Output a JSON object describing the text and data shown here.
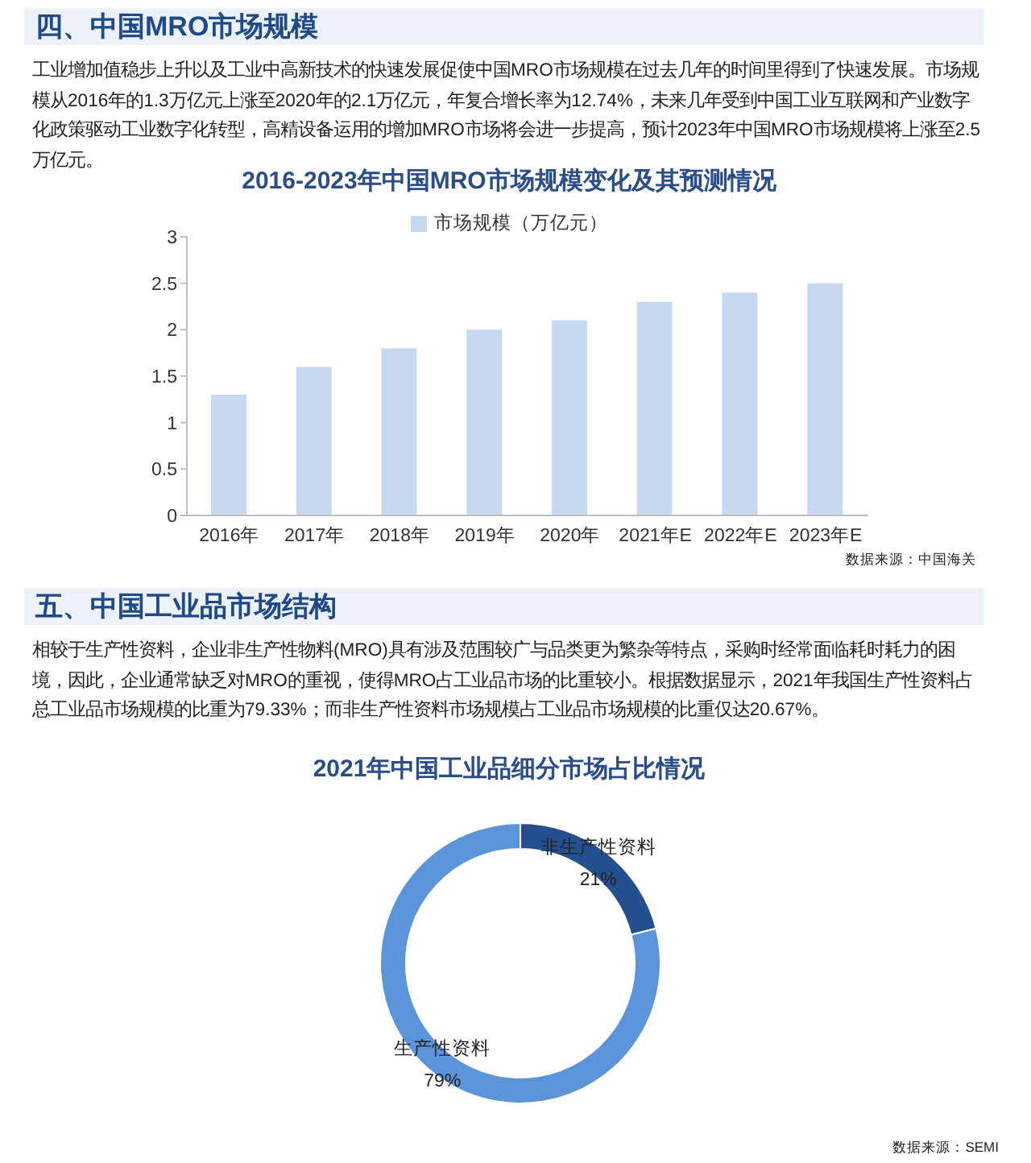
{
  "chart_data": [
    {
      "type": "bar",
      "title": "2016-2023年中国MRO市场规模变化及其预测情况",
      "categories": [
        "2016年",
        "2017年",
        "2018年",
        "2019年",
        "2020年",
        "2021年E",
        "2022年E",
        "2023年E"
      ],
      "series": [
        {
          "name": "市场规模（万亿元）",
          "color": "#c6d9f1",
          "values": [
            1.3,
            1.6,
            1.8,
            2.0,
            2.1,
            2.3,
            2.4,
            2.5
          ]
        }
      ],
      "ylim": [
        0,
        3
      ],
      "yticks": [
        0,
        0.5,
        1,
        1.5,
        2,
        2.5,
        3
      ],
      "legend": "top",
      "annotations": [
        "四、中国MRO市场规模",
        "工业增加值稳步上升以及工业中高新技术的快速发展促使中国MRO市场规模在过去几年的时间里得到了快速发展。市场规模从2016年的1.3万亿元上涨至2020年的2.1万亿元，年复合增长率为12.74%，未来几年受到中国工业互联网和产业数字化政策驱动工业数字化转型，高精设备运用的增加MRO市场将会进一步提高，预计2023年中国MRO市场规模将上涨至2.5万亿元。",
        "数据来源：中国海关"
      ]
    },
    {
      "type": "donut",
      "title": "2021年中国工业品细分市场占比情况",
      "categories": [
        "非生产性资料",
        "生产性资料"
      ],
      "values": [
        21,
        79
      ],
      "colors": [
        "#24508f",
        "#5b94d8"
      ],
      "value_labels": [
        "21%",
        "79%"
      ],
      "annotations": [
        "五、中国工业品市场结构",
        "相较于生产性资料，企业非生产性物料(MRO)具有涉及范围较广与品类更为繁杂等特点，采购时经常面临耗时耗力的困境，因此，企业通常缺乏对MRO的重视，使得MRO占工业品市场的比重较小。根据数据显示，2021年我国生产性资料占总工业品市场规模的比重为79.33%；而非生产性资料市场规模占工业品市场规模的比重仅达20.67%。",
        "数据来源：SEMI"
      ]
    }
  ]
}
